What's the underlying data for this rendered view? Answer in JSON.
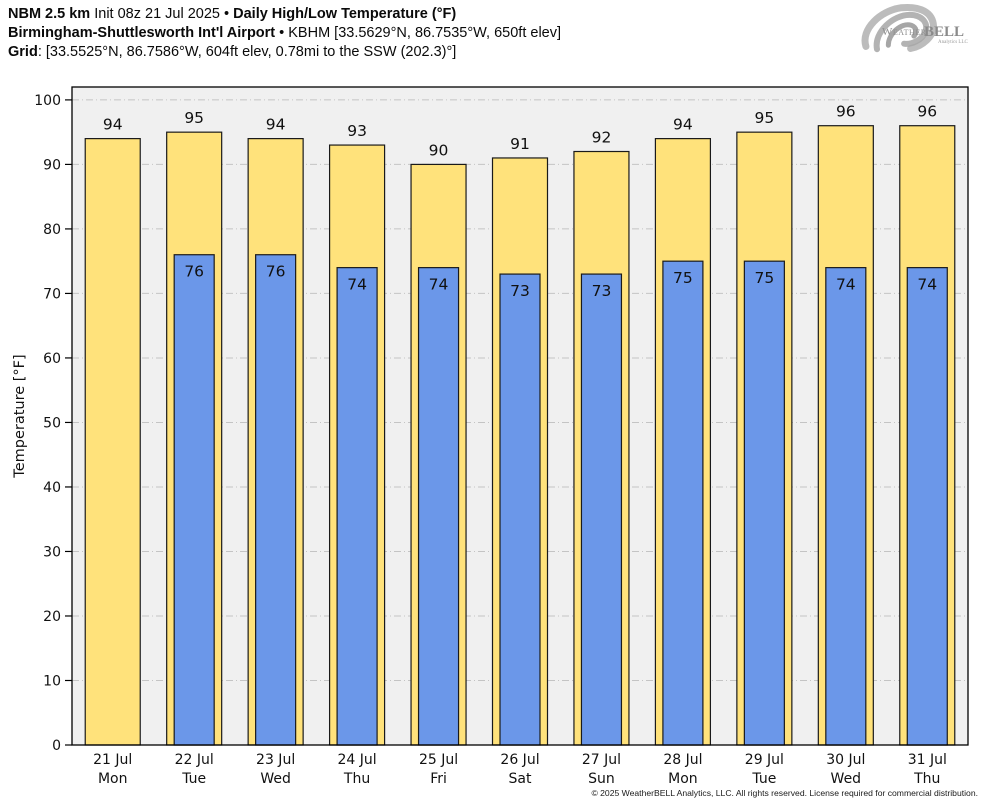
{
  "header": {
    "line1_bold": "NBM 2.5 km",
    "line1_mid": " Init 08z 21 Jul 2025 • ",
    "line1_bold2": "Daily High/Low Temperature (°F)",
    "line2_bold": "Birmingham-Shuttlesworth Int'l Airport",
    "line2_rest": " • KBHM [33.5629°N, 86.7535°W, 650ft elev]",
    "line3_bold": "Grid",
    "line3_rest": ": [33.5525°N, 86.7586°W, 604ft elev, 0.78mi to the SSW (202.3)°]"
  },
  "logo": {
    "weather": "Weather",
    "bell": "BELL",
    "subtitle": "Analytics LLC"
  },
  "footer": {
    "copyright": "© 2025 WeatherBELL Analytics, LLC. All rights reserved. License required for commercial distribution."
  },
  "chart_data": {
    "type": "bar",
    "title": "Daily High/Low Temperature (°F)",
    "xlabel": "",
    "ylabel": "Temperature [°F]",
    "ylim": [
      0,
      102
    ],
    "yticks": [
      0,
      10,
      20,
      30,
      40,
      50,
      60,
      70,
      80,
      90,
      100
    ],
    "grid": true,
    "legend_position": "none",
    "categories": [
      "21 Jul",
      "22 Jul",
      "23 Jul",
      "24 Jul",
      "25 Jul",
      "26 Jul",
      "27 Jul",
      "28 Jul",
      "29 Jul",
      "30 Jul",
      "31 Jul"
    ],
    "weekdays": [
      "Mon",
      "Tue",
      "Wed",
      "Thu",
      "Fri",
      "Sat",
      "Sun",
      "Mon",
      "Tue",
      "Wed",
      "Thu"
    ],
    "series": [
      {
        "name": "High",
        "color": "#ffe27b",
        "values": [
          94,
          95,
          94,
          93,
          90,
          91,
          92,
          94,
          95,
          96,
          96
        ]
      },
      {
        "name": "Low",
        "color": "#6b97e9",
        "values": [
          null,
          76,
          76,
          74,
          74,
          73,
          73,
          75,
          75,
          74,
          74
        ]
      }
    ],
    "plot_bg": "#f0f0f0",
    "grid_color": "#c4c4c4",
    "bar_outline": "#1a1a1a"
  }
}
